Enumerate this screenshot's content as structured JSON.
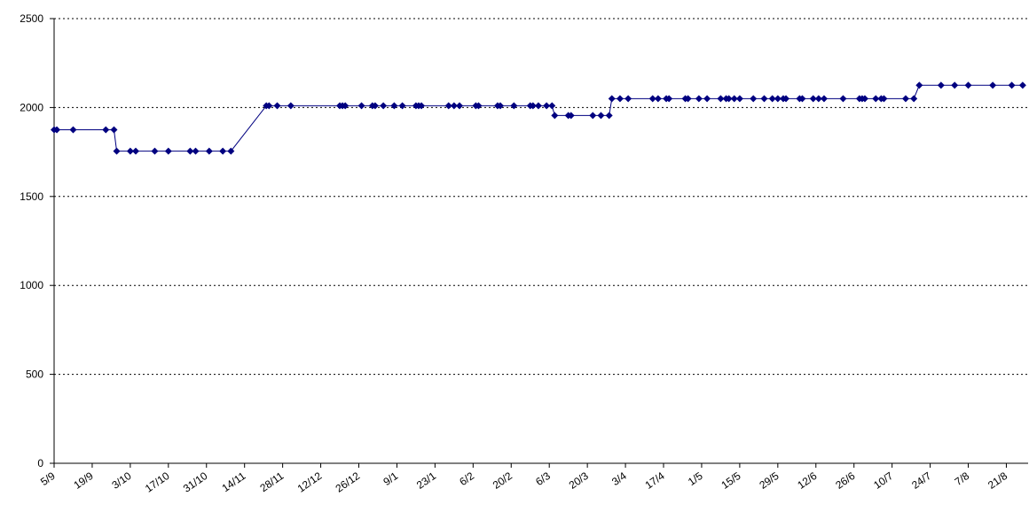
{
  "chart_data": {
    "type": "line",
    "x": [
      0,
      1,
      7,
      19,
      22,
      23,
      28,
      30,
      37,
      42,
      50,
      52,
      57,
      62,
      65,
      78,
      79,
      82,
      87,
      105,
      106,
      107,
      113,
      117,
      118,
      121,
      125,
      128,
      133,
      134,
      135,
      145,
      147,
      149,
      155,
      156,
      163,
      164,
      169,
      175,
      176,
      178,
      181,
      183,
      184,
      189,
      190,
      198,
      201,
      204,
      205,
      208,
      211,
      220,
      222,
      225,
      226,
      232,
      233,
      237,
      240,
      245,
      247,
      248,
      250,
      252,
      257,
      261,
      264,
      266,
      268,
      269,
      274,
      275,
      279,
      281,
      283,
      290,
      296,
      297,
      298,
      302,
      304,
      305,
      313,
      316,
      318,
      326,
      331,
      336,
      345,
      352,
      356
    ],
    "series": [
      {
        "color": "#000080",
        "values": [
          1875,
          1875,
          1875,
          1875,
          1875,
          1755,
          1755,
          1755,
          1755,
          1755,
          1755,
          1755,
          1755,
          1755,
          1755,
          2010,
          2010,
          2010,
          2010,
          2010,
          2010,
          2010,
          2010,
          2010,
          2010,
          2010,
          2010,
          2010,
          2010,
          2010,
          2010,
          2010,
          2010,
          2010,
          2010,
          2010,
          2010,
          2010,
          2010,
          2010,
          2010,
          2010,
          2010,
          2010,
          1955,
          1955,
          1955,
          1955,
          1955,
          1955,
          2050,
          2050,
          2050,
          2050,
          2050,
          2050,
          2050,
          2050,
          2050,
          2050,
          2050,
          2050,
          2050,
          2050,
          2050,
          2050,
          2050,
          2050,
          2050,
          2050,
          2050,
          2050,
          2050,
          2050,
          2050,
          2050,
          2050,
          2050,
          2050,
          2050,
          2050,
          2050,
          2050,
          2050,
          2050,
          2050,
          2125,
          2125,
          2125,
          2125,
          2125,
          2125,
          2125
        ]
      }
    ],
    "xlim": [
      0,
      358
    ],
    "xticks": [
      {
        "value": 0,
        "label": "5/9"
      },
      {
        "value": 14,
        "label": "19/9"
      },
      {
        "value": 28,
        "label": "3/10"
      },
      {
        "value": 42,
        "label": "17/10"
      },
      {
        "value": 56,
        "label": "31/10"
      },
      {
        "value": 70,
        "label": "14/11"
      },
      {
        "value": 84,
        "label": "28/11"
      },
      {
        "value": 98,
        "label": "12/12"
      },
      {
        "value": 112,
        "label": "26/12"
      },
      {
        "value": 126,
        "label": "9/1"
      },
      {
        "value": 140,
        "label": "23/1"
      },
      {
        "value": 154,
        "label": "6/2"
      },
      {
        "value": 168,
        "label": "20/2"
      },
      {
        "value": 182,
        "label": "6/3"
      },
      {
        "value": 196,
        "label": "20/3"
      },
      {
        "value": 210,
        "label": "3/4"
      },
      {
        "value": 224,
        "label": "17/4"
      },
      {
        "value": 238,
        "label": "1/5"
      },
      {
        "value": 252,
        "label": "15/5"
      },
      {
        "value": 266,
        "label": "29/5"
      },
      {
        "value": 280,
        "label": "12/6"
      },
      {
        "value": 294,
        "label": "26/6"
      },
      {
        "value": 308,
        "label": "10/7"
      },
      {
        "value": 322,
        "label": "24/7"
      },
      {
        "value": 336,
        "label": "7/8"
      },
      {
        "value": 350,
        "label": "21/8"
      }
    ],
    "ylim": [
      0,
      2500
    ],
    "yticks": [
      0,
      500,
      1000,
      1500,
      2000,
      2500
    ],
    "grid": true
  }
}
